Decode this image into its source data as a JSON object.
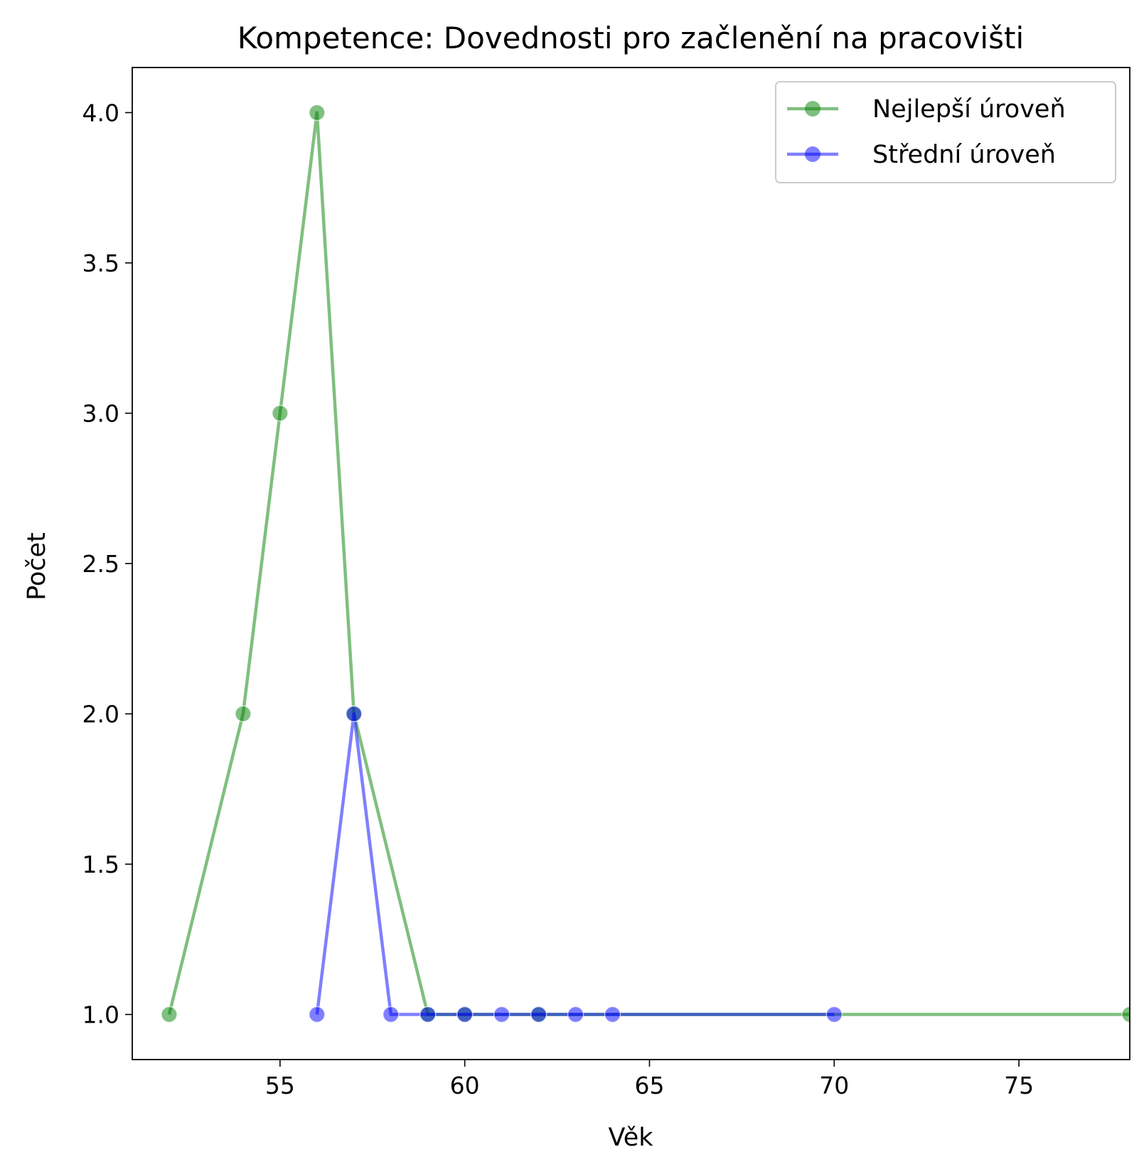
{
  "chart_data": {
    "type": "line",
    "title": "Kompetence: Dovednosti pro začlenění na pracovišti",
    "xlabel": "Věk",
    "ylabel": "Počet",
    "xlim": [
      51,
      78
    ],
    "ylim": [
      0.85,
      4.15
    ],
    "xticks": [
      55,
      60,
      65,
      70,
      75
    ],
    "yticks": [
      1.0,
      1.5,
      2.0,
      2.5,
      3.0,
      3.5,
      4.0
    ],
    "xtick_labels": [
      "55",
      "60",
      "65",
      "70",
      "75"
    ],
    "ytick_labels": [
      "1.0",
      "1.5",
      "2.0",
      "2.5",
      "3.0",
      "3.5",
      "4.0"
    ],
    "grid": false,
    "legend_position": "top-right",
    "series": [
      {
        "name": "Nejlepší úroveň",
        "color": "#008000",
        "x": [
          52,
          54,
          55,
          56,
          57,
          59,
          60,
          62,
          78
        ],
        "y": [
          1,
          2,
          3,
          4,
          2,
          1,
          1,
          1,
          1
        ]
      },
      {
        "name": "Střední úroveň",
        "color": "#0000ff",
        "x": [
          56,
          57,
          58,
          59,
          60,
          61,
          62,
          63,
          64,
          70
        ],
        "y": [
          1,
          2,
          1,
          1,
          1,
          1,
          1,
          1,
          1,
          1
        ]
      }
    ]
  }
}
